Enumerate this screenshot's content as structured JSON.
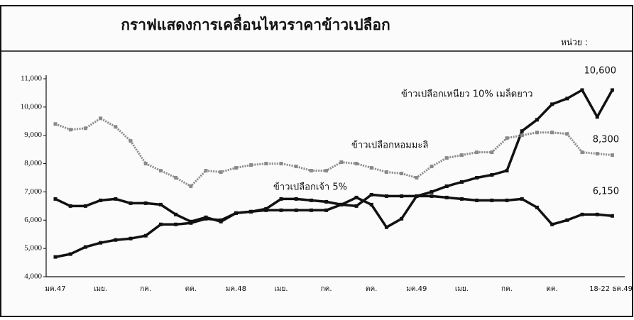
{
  "chart_data": {
    "type": "line",
    "title": "กราฟแสดงการเคลื่อนไหวราคาข้าวเปลือก",
    "unit_label": "หน่วย :",
    "categories": [
      "มค.47",
      null,
      null,
      "เมย.",
      null,
      null,
      "กค.",
      null,
      null,
      "ตค.",
      null,
      null,
      "มค.48",
      null,
      null,
      "เมย.",
      null,
      null,
      "กค.",
      null,
      null,
      "ตค.",
      null,
      null,
      "มค.49",
      null,
      null,
      "เมย.",
      null,
      null,
      "กค.",
      null,
      null,
      "ตค.",
      null,
      null,
      null,
      "18-22 ธค.49"
    ],
    "ylim": [
      4000,
      11000
    ],
    "yticks": [
      {
        "value": 4000,
        "label": "4,000"
      },
      {
        "value": 5000,
        "label": "5,000"
      },
      {
        "value": 6000,
        "label": "6,000"
      },
      {
        "value": 7000,
        "label": "7,000"
      },
      {
        "value": 8000,
        "label": "8,000"
      },
      {
        "value": 9000,
        "label": "9,000"
      },
      {
        "value": 10000,
        "label": "10,000"
      },
      {
        "value": 11000,
        "label": "11,000"
      }
    ],
    "series": [
      {
        "name": "ข้าวเปลือกเหนียว 10% เมล็ดยาว",
        "color": "#111111",
        "end_label": "10,600",
        "values": [
          4700,
          4800,
          5050,
          5200,
          5300,
          5350,
          5450,
          5850,
          5850,
          5900,
          6050,
          6000,
          6250,
          6300,
          6350,
          6350,
          6350,
          6350,
          6350,
          6550,
          6800,
          6550,
          5750,
          6050,
          6850,
          7000,
          7200,
          7350,
          7500,
          7600,
          7750,
          9150,
          9550,
          10100,
          10300,
          10600,
          9650,
          10600
        ]
      },
      {
        "name": "ข้าวเปลือกหอมมะลิ",
        "color": "#8a8a8a",
        "end_label": "8,300",
        "values": [
          9400,
          9200,
          9250,
          9600,
          9300,
          8800,
          8000,
          7750,
          7500,
          7200,
          7750,
          7700,
          7850,
          7950,
          8000,
          8000,
          7900,
          7750,
          7750,
          8050,
          8000,
          7850,
          7700,
          7650,
          7500,
          7900,
          8200,
          8300,
          8400,
          8400,
          8900,
          9000,
          9100,
          9100,
          9050,
          8400,
          8350,
          8300
        ]
      },
      {
        "name": "ข้าวเปลือกเจ้า 5%",
        "color": "#111111",
        "end_label": "6,150",
        "values": [
          6750,
          6500,
          6500,
          6700,
          6750,
          6600,
          6600,
          6550,
          6200,
          5950,
          6100,
          5950,
          6250,
          6300,
          6400,
          6750,
          6750,
          6700,
          6650,
          6550,
          6500,
          6900,
          6850,
          6850,
          6850,
          6850,
          6800,
          6750,
          6700,
          6700,
          6700,
          6750,
          6450,
          5850,
          6000,
          6200,
          6200,
          6150
        ]
      }
    ]
  }
}
